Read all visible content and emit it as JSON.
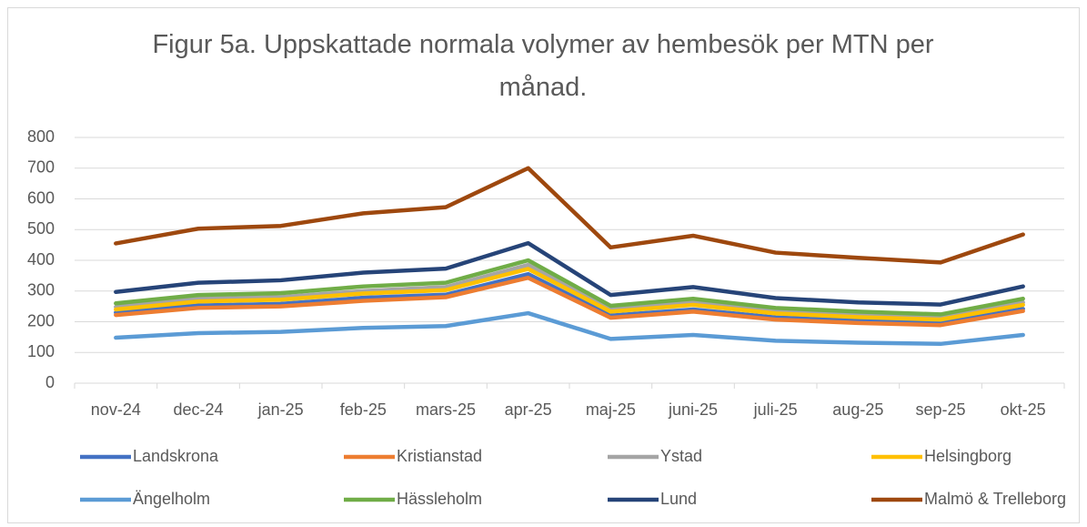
{
  "chart_data": {
    "type": "line",
    "title": "Figur 5a. Uppskattade normala volymer av hembesök per MTN per månad.",
    "categories": [
      "nov-24",
      "dec-24",
      "jan-25",
      "feb-25",
      "mars-25",
      "apr-25",
      "maj-25",
      "juni-25",
      "juli-25",
      "aug-25",
      "sep-25",
      "okt-25"
    ],
    "series": [
      {
        "name": "Landskrona",
        "color": "#4472c4",
        "values": [
          230,
          253,
          258,
          278,
          288,
          355,
          220,
          240,
          214,
          203,
          195,
          242
        ]
      },
      {
        "name": "Kristianstad",
        "color": "#ed7d31",
        "values": [
          222,
          245,
          250,
          268,
          280,
          343,
          213,
          233,
          207,
          196,
          189,
          235
        ]
      },
      {
        "name": "Ystad",
        "color": "#a5a5a5",
        "values": [
          248,
          275,
          280,
          300,
          313,
          385,
          242,
          263,
          235,
          223,
          215,
          263
        ]
      },
      {
        "name": "Helsingborg",
        "color": "#ffc000",
        "values": [
          240,
          266,
          272,
          292,
          303,
          372,
          233,
          255,
          227,
          215,
          207,
          255
        ]
      },
      {
        "name": "Ängelholm",
        "color": "#5b9bd5",
        "values": [
          148,
          163,
          167,
          180,
          186,
          228,
          144,
          157,
          138,
          132,
          128,
          157
        ]
      },
      {
        "name": "Hässleholm",
        "color": "#70ad47",
        "values": [
          260,
          287,
          293,
          315,
          327,
          400,
          252,
          275,
          245,
          233,
          224,
          275
        ]
      },
      {
        "name": "Lund",
        "color": "#264478",
        "values": [
          297,
          327,
          335,
          360,
          373,
          456,
          287,
          313,
          277,
          263,
          256,
          315
        ]
      },
      {
        "name": "Malmö & Trelleborg",
        "color": "#9e480e",
        "values": [
          455,
          503,
          512,
          553,
          573,
          700,
          442,
          480,
          425,
          408,
          393,
          484
        ]
      }
    ],
    "ylim": [
      0,
      800
    ],
    "yticks": [
      0,
      100,
      200,
      300,
      400,
      500,
      600,
      700,
      800
    ],
    "grid": true
  }
}
